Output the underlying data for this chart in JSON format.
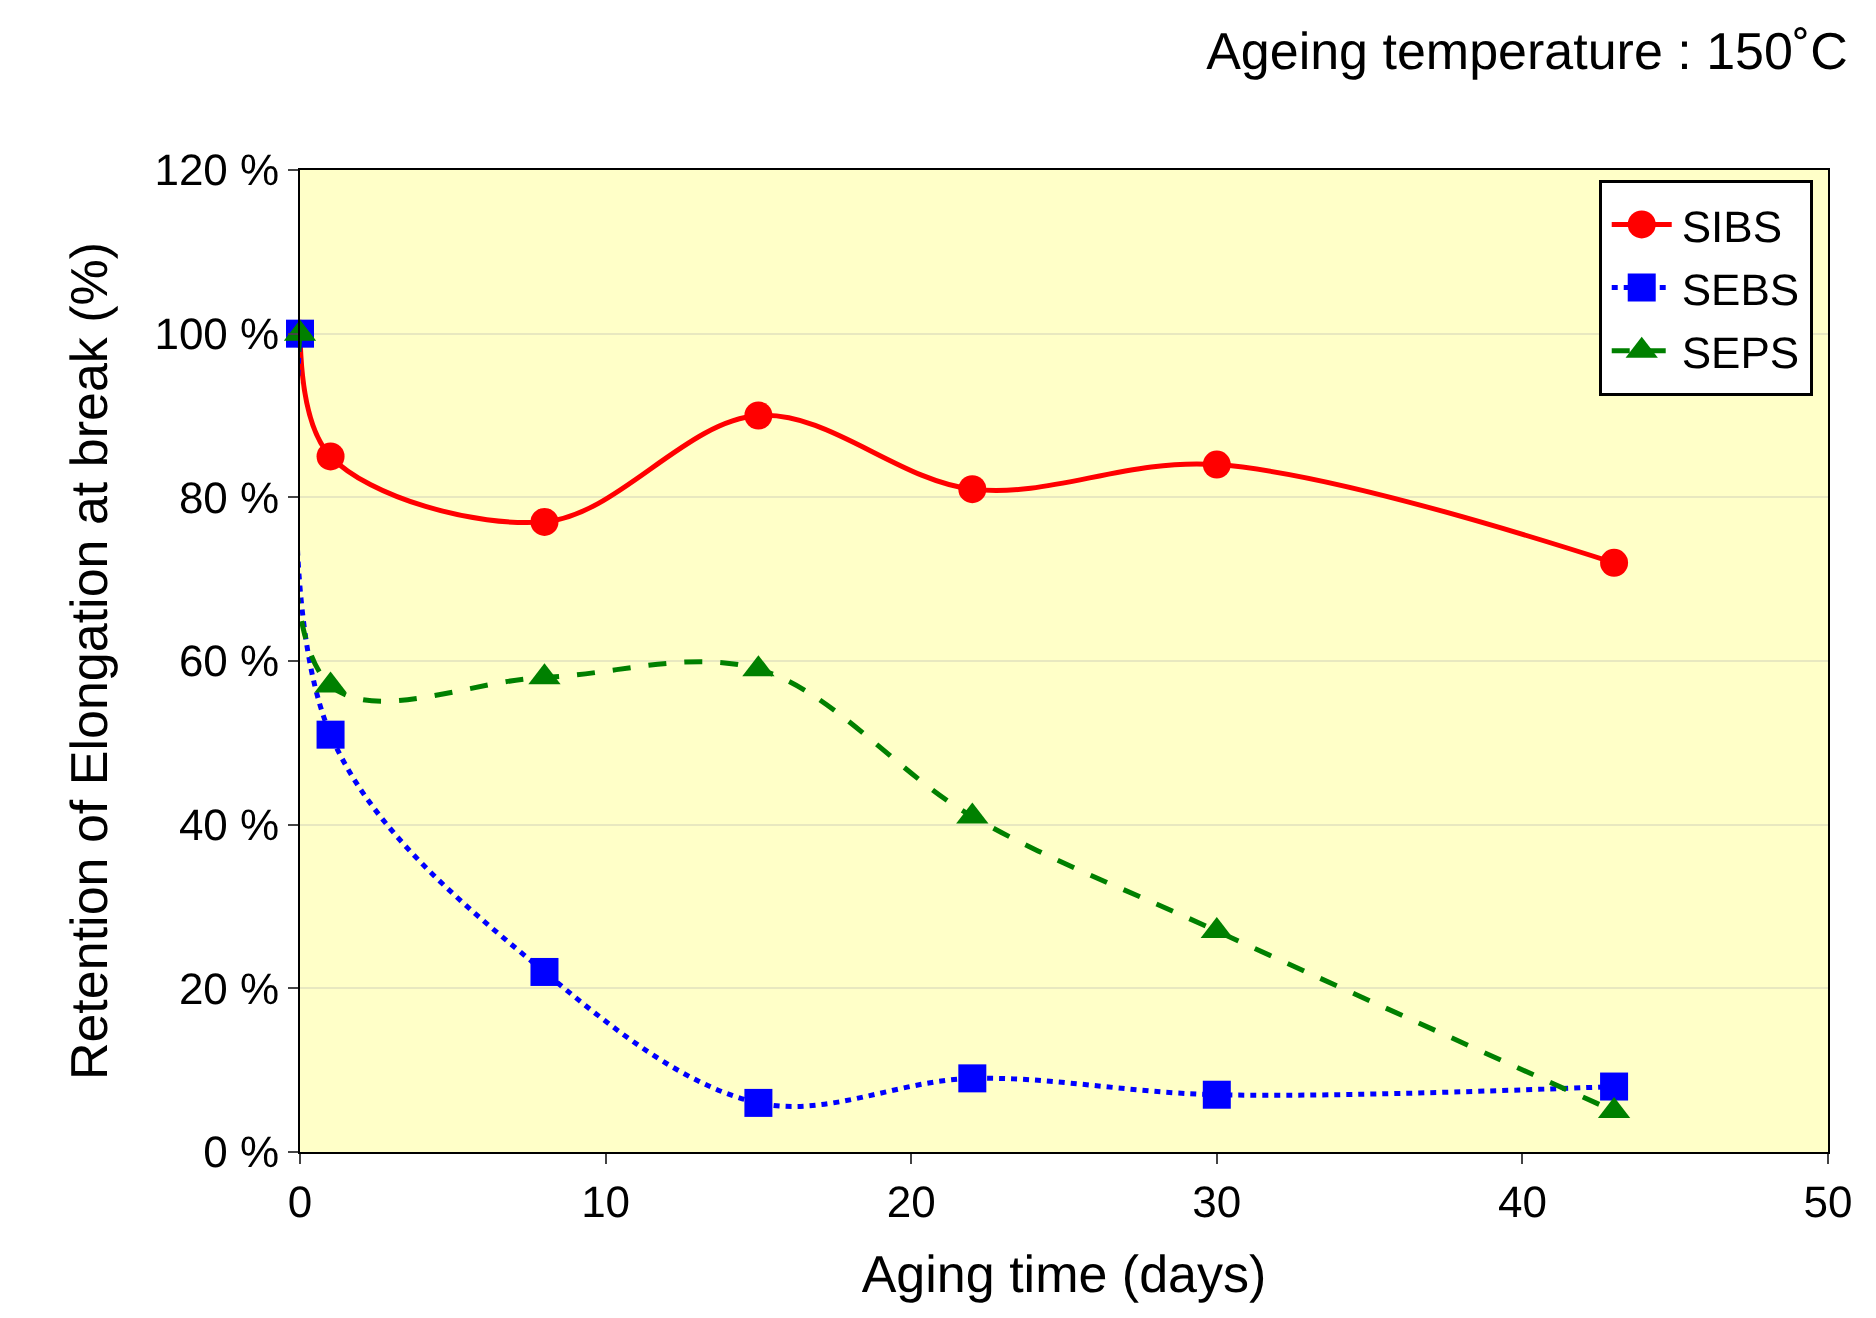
{
  "chart_data": {
    "type": "line",
    "title": "Ageing temperature : 150˚C",
    "xlabel": "Aging time (days)",
    "ylabel": "Retention of Elongation at break (%)",
    "x": [
      0,
      1,
      8,
      15,
      22,
      30,
      43
    ],
    "series": [
      {
        "name": "SIBS",
        "color": "#ff0000",
        "marker": "circle",
        "line_style": "solid",
        "values": [
          100,
          85,
          77,
          90,
          81,
          84,
          72
        ]
      },
      {
        "name": "SEBS",
        "color": "#0000ff",
        "marker": "square",
        "line_style": "dotted",
        "values": [
          100,
          51,
          22,
          6,
          9,
          7,
          8
        ]
      },
      {
        "name": "SEPS",
        "color": "#008000",
        "marker": "triangle",
        "line_style": "dashed",
        "values": [
          100,
          57,
          58,
          59,
          41,
          27,
          5
        ]
      }
    ],
    "xlim": [
      0,
      50
    ],
    "xticks": [
      0,
      10,
      20,
      30,
      40,
      50
    ],
    "ylim": [
      0,
      120
    ],
    "yticks": [
      {
        "value": 0,
        "label": "0 %"
      },
      {
        "value": 20,
        "label": "20 %"
      },
      {
        "value": 40,
        "label": "40 %"
      },
      {
        "value": 60,
        "label": "60 %"
      },
      {
        "value": 80,
        "label": "80 %"
      },
      {
        "value": 100,
        "label": "100 %"
      },
      {
        "value": 120,
        "label": "120 %"
      }
    ],
    "grid": "y",
    "legend": "top right"
  }
}
